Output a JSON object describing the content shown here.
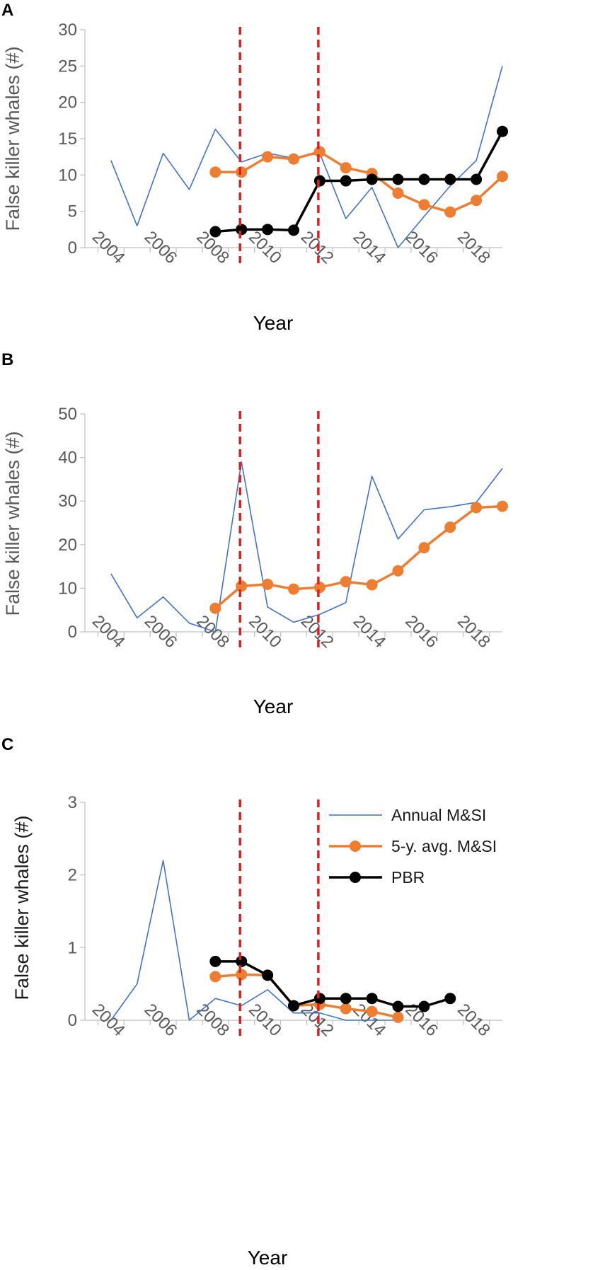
{
  "colors": {
    "annual": "#4472C4",
    "avg": "#ED7D31",
    "pbr": "#000000",
    "vline": "#E02020",
    "axis": "#BFBFBF",
    "text": "#595959"
  },
  "legend": {
    "annual": "Annual M&SI",
    "avg": "5-y. avg. M&SI",
    "pbr": "PBR"
  },
  "chart_data": [
    {
      "type": "line",
      "panel": "A",
      "xlabel": "Year",
      "ylabel": "False killer whales (#)",
      "ylim": [
        0,
        30
      ],
      "yticks": [
        0,
        5,
        10,
        15,
        20,
        25,
        30
      ],
      "xlim": [
        2003,
        2019
      ],
      "xticks": [
        2004,
        2006,
        2008,
        2010,
        2012,
        2014,
        2016,
        2018
      ],
      "vlines": [
        2009,
        2012
      ],
      "series": [
        {
          "name": "Annual M&SI",
          "key": "annual",
          "markers": false,
          "x": [
            2004,
            2005,
            2006,
            2007,
            2008,
            2009,
            2010,
            2011,
            2012,
            2013,
            2014,
            2015,
            2016,
            2017,
            2018,
            2019
          ],
          "y": [
            12,
            3,
            13,
            8,
            16.3,
            11.8,
            13,
            12.3,
            13,
            4,
            8.3,
            0,
            4.3,
            8.5,
            12,
            25
          ]
        },
        {
          "name": "5-y. avg. M&SI",
          "key": "avg",
          "markers": true,
          "x": [
            2008,
            2009,
            2010,
            2011,
            2012,
            2013,
            2014,
            2015,
            2016,
            2017,
            2018,
            2019
          ],
          "y": [
            10.4,
            10.4,
            12.5,
            12.2,
            13.2,
            11,
            10.2,
            7.5,
            5.9,
            4.9,
            6.5,
            9.8
          ]
        },
        {
          "name": "PBR",
          "key": "pbr",
          "markers": true,
          "x": [
            2008,
            2009,
            2010,
            2011,
            2012,
            2013,
            2014,
            2015,
            2016,
            2017,
            2018,
            2019
          ],
          "y": [
            2.2,
            2.5,
            2.5,
            2.4,
            9.2,
            9.2,
            9.4,
            9.4,
            9.4,
            9.4,
            9.4,
            16
          ]
        }
      ]
    },
    {
      "type": "line",
      "panel": "B",
      "xlabel": "Year",
      "ylabel": "False killer whales (#)",
      "ylim": [
        0,
        50
      ],
      "yticks": [
        0,
        10,
        20,
        30,
        40,
        50
      ],
      "xlim": [
        2003,
        2019
      ],
      "xticks": [
        2004,
        2006,
        2008,
        2010,
        2012,
        2014,
        2016,
        2018
      ],
      "vlines": [
        2009,
        2012
      ],
      "series": [
        {
          "name": "Annual M&SI",
          "key": "annual",
          "markers": false,
          "x": [
            2004,
            2005,
            2006,
            2007,
            2008,
            2009,
            2010,
            2011,
            2012,
            2013,
            2014,
            2015,
            2016,
            2017,
            2018,
            2019
          ],
          "y": [
            13.3,
            3.2,
            8,
            2,
            0,
            39,
            5.7,
            2.2,
            4,
            6.7,
            35.7,
            21.3,
            28,
            28.7,
            29.7,
            37.5
          ]
        },
        {
          "name": "5-y. avg. M&SI",
          "key": "avg",
          "markers": true,
          "x": [
            2008,
            2009,
            2010,
            2011,
            2012,
            2013,
            2014,
            2015,
            2016,
            2017,
            2018,
            2019
          ],
          "y": [
            5.4,
            10.5,
            10.9,
            9.8,
            10.2,
            11.5,
            10.8,
            14,
            19.3,
            24,
            28.5,
            28.8
          ]
        }
      ]
    },
    {
      "type": "line",
      "panel": "C",
      "xlabel": "Year",
      "ylabel": "False killer whales (#)",
      "ylim": [
        0,
        3
      ],
      "yticks": [
        0,
        1,
        2,
        3
      ],
      "xlim": [
        2003,
        2019
      ],
      "xticks": [
        2004,
        2006,
        2008,
        2010,
        2012,
        2014,
        2016,
        2018
      ],
      "vlines": [
        2009,
        2012
      ],
      "series": [
        {
          "name": "Annual M&SI",
          "key": "annual",
          "markers": false,
          "x": [
            2004,
            2005,
            2006,
            2007,
            2008,
            2009,
            2010,
            2011,
            2012,
            2013,
            2014,
            2015
          ],
          "y": [
            0,
            0.5,
            2.2,
            0,
            0.3,
            0.2,
            0.42,
            0.1,
            0.1,
            0,
            0,
            0
          ]
        },
        {
          "name": "5-y. avg. M&SI",
          "key": "avg",
          "markers": true,
          "x": [
            2008,
            2009,
            2010,
            2011,
            2012,
            2013,
            2014,
            2015
          ],
          "y": [
            0.6,
            0.63,
            0.62,
            0.2,
            0.22,
            0.16,
            0.12,
            0.04
          ]
        },
        {
          "name": "PBR",
          "key": "pbr",
          "markers": true,
          "x": [
            2008,
            2009,
            2010,
            2011,
            2012,
            2013,
            2014,
            2015,
            2016,
            2017
          ],
          "y": [
            0.81,
            0.81,
            0.62,
            0.2,
            0.3,
            0.3,
            0.3,
            0.19,
            0.19,
            0.3
          ]
        }
      ]
    }
  ]
}
